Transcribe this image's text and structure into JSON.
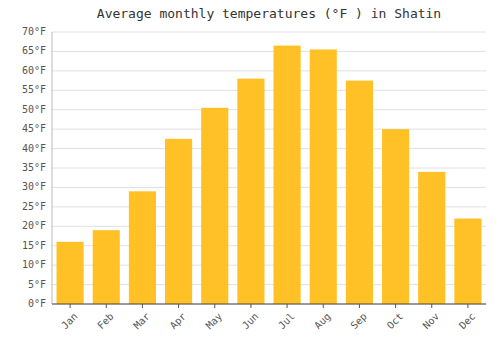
{
  "chart_data": {
    "type": "bar",
    "title": "Average monthly temperatures (°F ) in Shatin",
    "categories": [
      "Jan",
      "Feb",
      "Mar",
      "Apr",
      "May",
      "Jun",
      "Jul",
      "Aug",
      "Sep",
      "Oct",
      "Nov",
      "Dec"
    ],
    "values": [
      16,
      19,
      29,
      42.5,
      50.5,
      58,
      66.5,
      65.5,
      57.5,
      45,
      34,
      22
    ],
    "color": "#FFC125",
    "ylim": [
      0,
      70
    ],
    "yticks": [
      {
        "value": 0,
        "label": "0°F"
      },
      {
        "value": 5,
        "label": "5°F"
      },
      {
        "value": 10,
        "label": "10°F"
      },
      {
        "value": 15,
        "label": "15°F"
      },
      {
        "value": 20,
        "label": "20°F"
      },
      {
        "value": 25,
        "label": "25°F"
      },
      {
        "value": 30,
        "label": "30°F"
      },
      {
        "value": 35,
        "label": "35°F"
      },
      {
        "value": 40,
        "label": "40°F"
      },
      {
        "value": 45,
        "label": "45°F"
      },
      {
        "value": 50,
        "label": "50°F"
      },
      {
        "value": 55,
        "label": "55°F"
      },
      {
        "value": 60,
        "label": "60°F"
      },
      {
        "value": 65,
        "label": "65°F"
      },
      {
        "value": 70,
        "label": "70°F"
      }
    ],
    "grid": true
  }
}
